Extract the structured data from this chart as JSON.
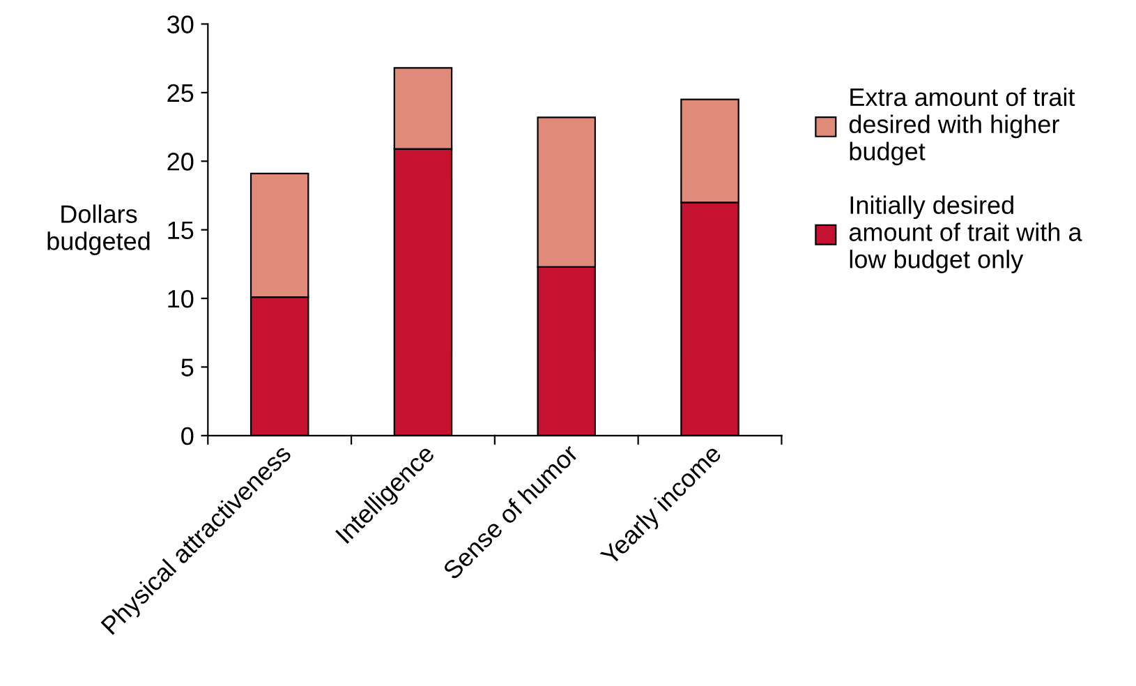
{
  "chart_data": {
    "type": "bar",
    "stacked": true,
    "ylabel": "Dollars\nbudgeted",
    "categories": [
      "Physical attractiveness",
      "Intelligence",
      "Sense of humor",
      "Yearly income"
    ],
    "series": [
      {
        "name": "Initially desired amount of trait with a low budget only",
        "color": "#c41230",
        "values": [
          10.1,
          20.9,
          12.3,
          17.0
        ]
      },
      {
        "name": "Extra amount of trait desired with higher budget",
        "color": "#e08a7a",
        "values": [
          9.0,
          5.9,
          10.9,
          7.5
        ]
      }
    ],
    "ylim": [
      0,
      30
    ],
    "yticks": [
      0,
      5,
      10,
      15,
      20,
      25,
      30
    ],
    "grid": false,
    "legend": "right"
  }
}
